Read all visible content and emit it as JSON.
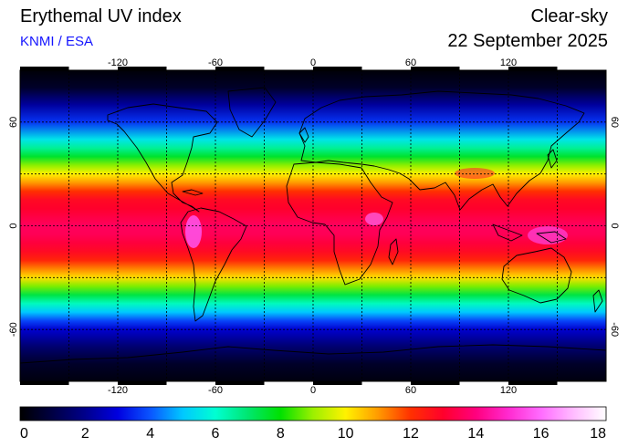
{
  "header": {
    "title": "Erythemal UV index",
    "credit": "KNMI / ESA",
    "condition": "Clear-sky",
    "date": "22 September 2025"
  },
  "map": {
    "projection": "equirectangular",
    "lon_range": [
      -180,
      180
    ],
    "lat_range": [
      -90,
      90
    ],
    "grid_spacing_deg": 30,
    "lon_ticks": [
      "-120",
      "-60",
      "0",
      "60",
      "120"
    ],
    "lat_ticks": [
      "60",
      "0",
      "-60"
    ],
    "uv_profile": [
      {
        "lat": 90,
        "uv": 0.1
      },
      {
        "lat": 80,
        "uv": 0.6
      },
      {
        "lat": 70,
        "uv": 2.2
      },
      {
        "lat": 60,
        "uv": 3.6
      },
      {
        "lat": 50,
        "uv": 5.5
      },
      {
        "lat": 45,
        "uv": 6.6
      },
      {
        "lat": 40,
        "uv": 7.6
      },
      {
        "lat": 35,
        "uv": 8.9
      },
      {
        "lat": 30,
        "uv": 10.0
      },
      {
        "lat": 25,
        "uv": 11.0
      },
      {
        "lat": 20,
        "uv": 12.0
      },
      {
        "lat": 15,
        "uv": 12.8
      },
      {
        "lat": 10,
        "uv": 13.0
      },
      {
        "lat": 5,
        "uv": 13.3
      },
      {
        "lat": 0,
        "uv": 13.6
      },
      {
        "lat": -5,
        "uv": 13.5
      },
      {
        "lat": -10,
        "uv": 13.2
      },
      {
        "lat": -15,
        "uv": 12.8
      },
      {
        "lat": -20,
        "uv": 12.2
      },
      {
        "lat": -25,
        "uv": 11.2
      },
      {
        "lat": -30,
        "uv": 10.2
      },
      {
        "lat": -35,
        "uv": 8.8
      },
      {
        "lat": -40,
        "uv": 7.4
      },
      {
        "lat": -45,
        "uv": 6.2
      },
      {
        "lat": -50,
        "uv": 5.0
      },
      {
        "lat": -55,
        "uv": 3.8
      },
      {
        "lat": -60,
        "uv": 2.8
      },
      {
        "lat": -70,
        "uv": 1.6
      },
      {
        "lat": -80,
        "uv": 0.6
      },
      {
        "lat": -90,
        "uv": 0.2
      }
    ]
  },
  "colorbar": {
    "min": 0,
    "max": 18,
    "tick_labels": [
      "0",
      "2",
      "4",
      "6",
      "8",
      "10",
      "12",
      "14",
      "16",
      "18"
    ],
    "colors": [
      {
        "value": 0,
        "color": "#000000"
      },
      {
        "value": 1,
        "color": "#000044"
      },
      {
        "value": 2,
        "color": "#00008c"
      },
      {
        "value": 3,
        "color": "#0000e0"
      },
      {
        "value": 4,
        "color": "#0a55ff"
      },
      {
        "value": 5,
        "color": "#00c8ff"
      },
      {
        "value": 6,
        "color": "#00ffd2"
      },
      {
        "value": 7,
        "color": "#00e670"
      },
      {
        "value": 8,
        "color": "#00e100"
      },
      {
        "value": 9,
        "color": "#9cf000"
      },
      {
        "value": 10,
        "color": "#fff200"
      },
      {
        "value": 11,
        "color": "#ff9a00"
      },
      {
        "value": 12,
        "color": "#ff3000"
      },
      {
        "value": 13,
        "color": "#ff002c"
      },
      {
        "value": 14,
        "color": "#ff007e"
      },
      {
        "value": 15,
        "color": "#ff2ad0"
      },
      {
        "value": 16,
        "color": "#ff6cff"
      },
      {
        "value": 17,
        "color": "#ffbcff"
      },
      {
        "value": 18,
        "color": "#ffffff"
      }
    ]
  }
}
